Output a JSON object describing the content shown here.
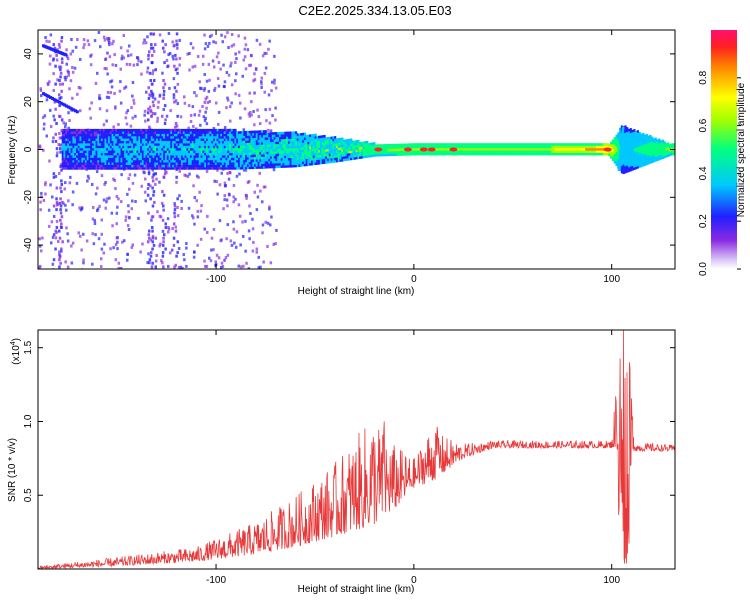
{
  "title": "C2E2.2025.334.13.05.E03",
  "colors": {
    "snr_line": "#e8393a",
    "axis": "#000000",
    "spectro_low": "#b88cf0",
    "spectro_mid": "#00c8ff",
    "spectro_high": "#ff2020"
  },
  "chart_data": [
    {
      "type": "heatmap",
      "name": "spectrogram",
      "xlabel": "Height of straight line (km)",
      "ylabel": "Frequency (Hz)",
      "xlim": [
        -190,
        132
      ],
      "ylim": [
        -50,
        50
      ],
      "x_ticks": [
        -100,
        0,
        100
      ],
      "x_tick_labels": [
        "-100",
        "0",
        "100"
      ],
      "y_ticks": [
        -40,
        -20,
        0,
        20,
        40
      ],
      "y_tick_labels": [
        "-40",
        "-20",
        "0",
        "20",
        "40"
      ],
      "colorbar": {
        "label": "Normalized spectral amplitude",
        "range": [
          0,
          1
        ],
        "ticks": [
          0.0,
          0.2,
          0.4,
          0.6,
          0.8
        ],
        "tick_labels": [
          "0.0",
          "0.2",
          "0.4",
          "0.6",
          "0.8"
        ]
      },
      "band_profile": [
        {
          "x": -175,
          "halfwidth_hz": 8,
          "amplitude": 0.25
        },
        {
          "x": -150,
          "halfwidth_hz": 8,
          "amplitude": 0.3
        },
        {
          "x": -120,
          "halfwidth_hz": 8,
          "amplitude": 0.3
        },
        {
          "x": -90,
          "halfwidth_hz": 8,
          "amplitude": 0.35
        },
        {
          "x": -60,
          "halfwidth_hz": 7,
          "amplitude": 0.4
        },
        {
          "x": -40,
          "halfwidth_hz": 5,
          "amplitude": 0.45
        },
        {
          "x": -20,
          "halfwidth_hz": 2.5,
          "amplitude": 0.5
        },
        {
          "x": 0,
          "halfwidth_hz": 2,
          "amplitude": 0.6
        },
        {
          "x": 20,
          "halfwidth_hz": 2,
          "amplitude": 0.6
        },
        {
          "x": 60,
          "halfwidth_hz": 2,
          "amplitude": 0.55
        },
        {
          "x": 98,
          "halfwidth_hz": 2,
          "amplitude": 0.8
        },
        {
          "x": 105,
          "halfwidth_hz": 10,
          "amplitude": 0.3
        },
        {
          "x": 130,
          "halfwidth_hz": 2,
          "amplitude": 0.55
        }
      ],
      "hot_spots_x": [
        -18,
        -3,
        5,
        9,
        20,
        98
      ]
    },
    {
      "type": "line",
      "name": "snr",
      "xlabel": "Height of straight line (km)",
      "ylabel": "SNR (10 * v/v)",
      "y_multiplier_label": "(x10",
      "y_multiplier_exp": "4",
      "y_multiplier_close": ")",
      "xlim": [
        -190,
        132
      ],
      "ylim": [
        0,
        1.62
      ],
      "x_ticks": [
        -100,
        0,
        100
      ],
      "x_tick_labels": [
        "-100",
        "0",
        "100"
      ],
      "y_ticks": [
        0.5,
        1.0,
        1.5
      ],
      "y_tick_labels": [
        "0.5",
        "1.0",
        "1.5"
      ],
      "series": [
        {
          "name": "SNR",
          "envelope_points": [
            {
              "x": -190,
              "base": 0.0,
              "amp": 0.02
            },
            {
              "x": -150,
              "base": 0.02,
              "amp": 0.06
            },
            {
              "x": -110,
              "base": 0.05,
              "amp": 0.1
            },
            {
              "x": -80,
              "base": 0.1,
              "amp": 0.22
            },
            {
              "x": -60,
              "base": 0.15,
              "amp": 0.35
            },
            {
              "x": -40,
              "base": 0.22,
              "amp": 0.5
            },
            {
              "x": -20,
              "base": 0.3,
              "amp": 0.75
            },
            {
              "x": -10,
              "base": 0.4,
              "amp": 0.45
            },
            {
              "x": 0,
              "base": 0.55,
              "amp": 0.2
            },
            {
              "x": 10,
              "base": 0.6,
              "amp": 0.4
            },
            {
              "x": 15,
              "base": 0.65,
              "amp": 0.25
            },
            {
              "x": 25,
              "base": 0.75,
              "amp": 0.1
            },
            {
              "x": 40,
              "base": 0.82,
              "amp": 0.05
            },
            {
              "x": 100,
              "base": 0.82,
              "amp": 0.05
            },
            {
              "x": 104,
              "base": 0.8,
              "amp": 0.8
            },
            {
              "x": 108,
              "base": 0.8,
              "amp": 0.8
            },
            {
              "x": 112,
              "base": 0.8,
              "amp": 0.06
            },
            {
              "x": 132,
              "base": 0.8,
              "amp": 0.04
            }
          ],
          "peaks": [
            {
              "x": -15,
              "y": 1.0
            },
            {
              "x": 12,
              "y": 0.93
            },
            {
              "x": 106,
              "y": 1.62
            },
            {
              "x": 107,
              "y": 0.07
            }
          ]
        }
      ]
    }
  ]
}
